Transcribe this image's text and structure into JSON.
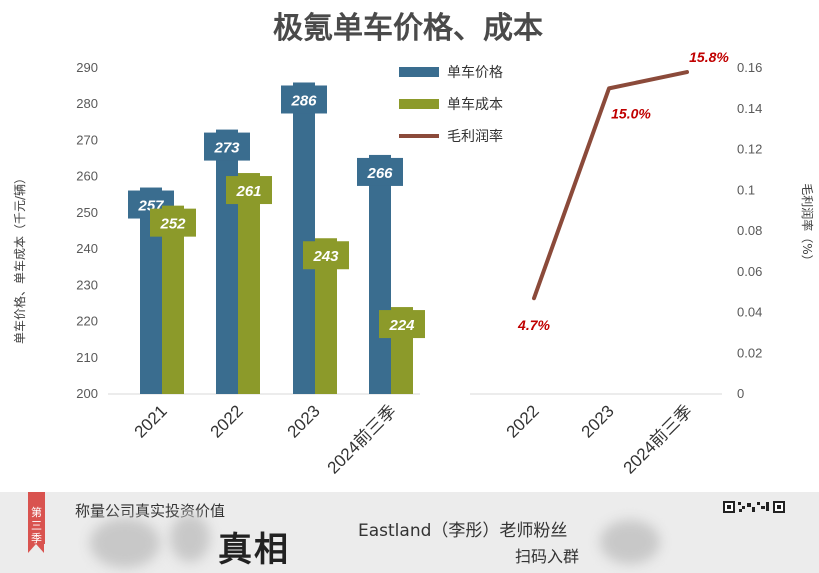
{
  "chart_data": {
    "title": "极氪单车价格、成本",
    "left_chart": {
      "type": "bar",
      "categories": [
        "2021",
        "2022",
        "2023",
        "2024前三季"
      ],
      "series": [
        {
          "name": "单车价格",
          "values": [
            257,
            273,
            286,
            266
          ],
          "color": "#3a6d8f"
        },
        {
          "name": "单车成本",
          "values": [
            252,
            261,
            243,
            224
          ],
          "color": "#8c9a2a"
        }
      ],
      "ylabel": "单车价格、单车成本（千元/辆）",
      "ylim": [
        200,
        290
      ],
      "yticks": [
        "200",
        "210",
        "220",
        "230",
        "240",
        "250",
        "260",
        "270",
        "280",
        "290"
      ]
    },
    "right_chart": {
      "type": "line",
      "categories": [
        "2022",
        "2023",
        "2024前三季"
      ],
      "series": [
        {
          "name": "毛利润率",
          "values": [
            0.047,
            0.15,
            0.158
          ],
          "labels": [
            "4.7%",
            "15.0%",
            "15.8%"
          ],
          "color": "#8b4a3a"
        }
      ],
      "ylabel": "毛利润率（%）",
      "ylim": [
        0,
        0.16
      ],
      "yticks": [
        "0",
        "0.02",
        "0.04",
        "0.06",
        "0.08",
        "0.1",
        "0.12",
        "0.14",
        "0.16"
      ]
    },
    "legend": [
      "单车价格",
      "单车成本",
      "毛利润率"
    ],
    "legend_position": "top-center",
    "grid": false
  },
  "footer": {
    "season_tab": "第三季",
    "top_text": "称量公司真实投资价值",
    "big_text": "真相",
    "mid_text": "Eastland（李彤）老师粉丝",
    "sub_text": "扫码入群",
    "icon": "qr-icon"
  }
}
